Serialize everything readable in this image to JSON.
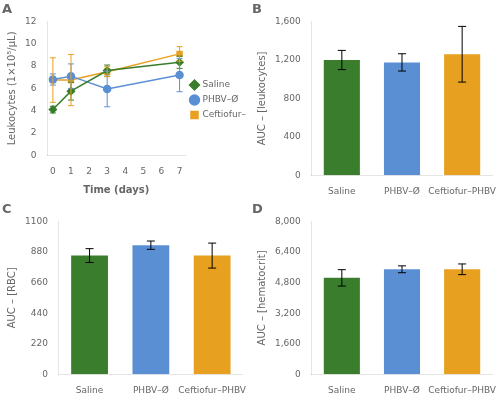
{
  "chart_data": [
    {
      "type": "line",
      "title": "A",
      "xlabel": "Time (days)",
      "ylabel": "Leukocytes (1×10⁵/μL)",
      "x": [
        0,
        1,
        3,
        7
      ],
      "series": [
        {
          "name": "Saline",
          "color": "#3a7d2c",
          "marker": "diamond",
          "values": [
            4.1,
            5.75,
            7.6,
            8.35
          ],
          "errors": [
            0.3,
            0.8,
            0.5,
            0.55
          ]
        },
        {
          "name": "PHBV–Ø",
          "color": "#5b8fd4",
          "marker": "circle",
          "values": [
            6.8,
            7.1,
            5.95,
            7.2
          ],
          "errors": [
            0.5,
            1.1,
            1.6,
            1.5
          ]
        },
        {
          "name": "Ceftiofur–PHBV",
          "color": "#e8a020",
          "marker": "square",
          "values": [
            6.75,
            6.75,
            7.5,
            9.1
          ],
          "errors": [
            2.0,
            2.3,
            0.45,
            0.65
          ]
        }
      ],
      "xlim": [
        -0.3,
        7.3
      ],
      "xticks": [
        0,
        1,
        2,
        3,
        4,
        5,
        6,
        7
      ],
      "ylim": [
        0,
        12
      ],
      "yticks": [
        0,
        2,
        4,
        6,
        8,
        10,
        12
      ],
      "grid": false,
      "legend": "right"
    },
    {
      "type": "bar",
      "title": "B",
      "ylabel": "AUC – [leukocytes]",
      "categories": [
        "Saline",
        "PHBV–Ø",
        "Ceftiofur–PHBV"
      ],
      "values": [
        1200,
        1175,
        1260
      ],
      "errors": [
        100,
        90,
        290
      ],
      "colors": [
        "#3a7d2c",
        "#5b8fd4",
        "#e8a020"
      ],
      "ylim": [
        0,
        1600
      ],
      "yticks": [
        0,
        400,
        800,
        {
          "value": 1200,
          "label": "1,200"
        },
        {
          "value": 1600,
          "label": "1,600"
        }
      ],
      "grid": false
    },
    {
      "type": "bar",
      "title": "C",
      "ylabel": "AUC – [RBC]",
      "categories": [
        "Saline",
        "PHBV–Ø",
        "Ceftiofur–PHBV"
      ],
      "values": [
        855,
        930,
        855
      ],
      "errors": [
        50,
        30,
        90
      ],
      "colors": [
        "#3a7d2c",
        "#5b8fd4",
        "#e8a020"
      ],
      "ylim": [
        0,
        1100
      ],
      "yticks": [
        0,
        220,
        440,
        660,
        880,
        1100
      ],
      "grid": false
    },
    {
      "type": "bar",
      "title": "D",
      "ylabel": "AUC – [hematocrit]",
      "categories": [
        "Saline",
        "PHBV–Ø",
        "Ceftiofur–PHBV"
      ],
      "values": [
        5050,
        5500,
        5500
      ],
      "errors": [
        430,
        180,
        280
      ],
      "colors": [
        "#3a7d2c",
        "#5b8fd4",
        "#e8a020"
      ],
      "ylim": [
        0,
        8000
      ],
      "yticks": [
        0,
        {
          "value": 1600,
          "label": "1,600"
        },
        {
          "value": 3200,
          "label": "3,200"
        },
        {
          "value": 4800,
          "label": "4,800"
        },
        {
          "value": 6400,
          "label": "6,400"
        },
        {
          "value": 8000,
          "label": "8,000"
        }
      ],
      "grid": false
    }
  ]
}
